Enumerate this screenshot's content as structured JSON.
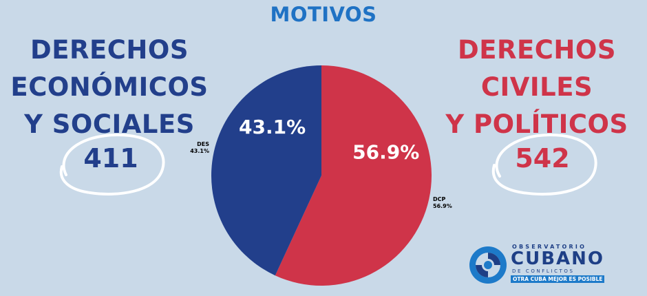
{
  "title": "MOTIVOS",
  "left_group": {
    "heading_lines": [
      "DERECHOS",
      "ECONÓMICOS",
      "Y SOCIALES"
    ],
    "count": "411"
  },
  "right_group": {
    "heading_lines": [
      "DERECHOS",
      "CIVILES",
      "Y POLÍTICOS"
    ],
    "count": "542"
  },
  "colors": {
    "background": "#c9d9e8",
    "des": "#223f8b",
    "dcp": "#cf3449",
    "title": "#1f72c4"
  },
  "chart_data": {
    "type": "pie",
    "title": "MOTIVOS",
    "slices": [
      {
        "label": "DCP",
        "value": 56.9,
        "display": "56.9%",
        "color": "#cf3449"
      },
      {
        "label": "DES",
        "value": 43.1,
        "display": "43.1%",
        "color": "#223f8b"
      }
    ]
  },
  "logo": {
    "line1": "OBSERVATORIO",
    "line2": "CUBANO",
    "line3": "DE CONFLICTOS",
    "tagline": "OTRA CUBA MEJOR ES POSIBLE"
  }
}
